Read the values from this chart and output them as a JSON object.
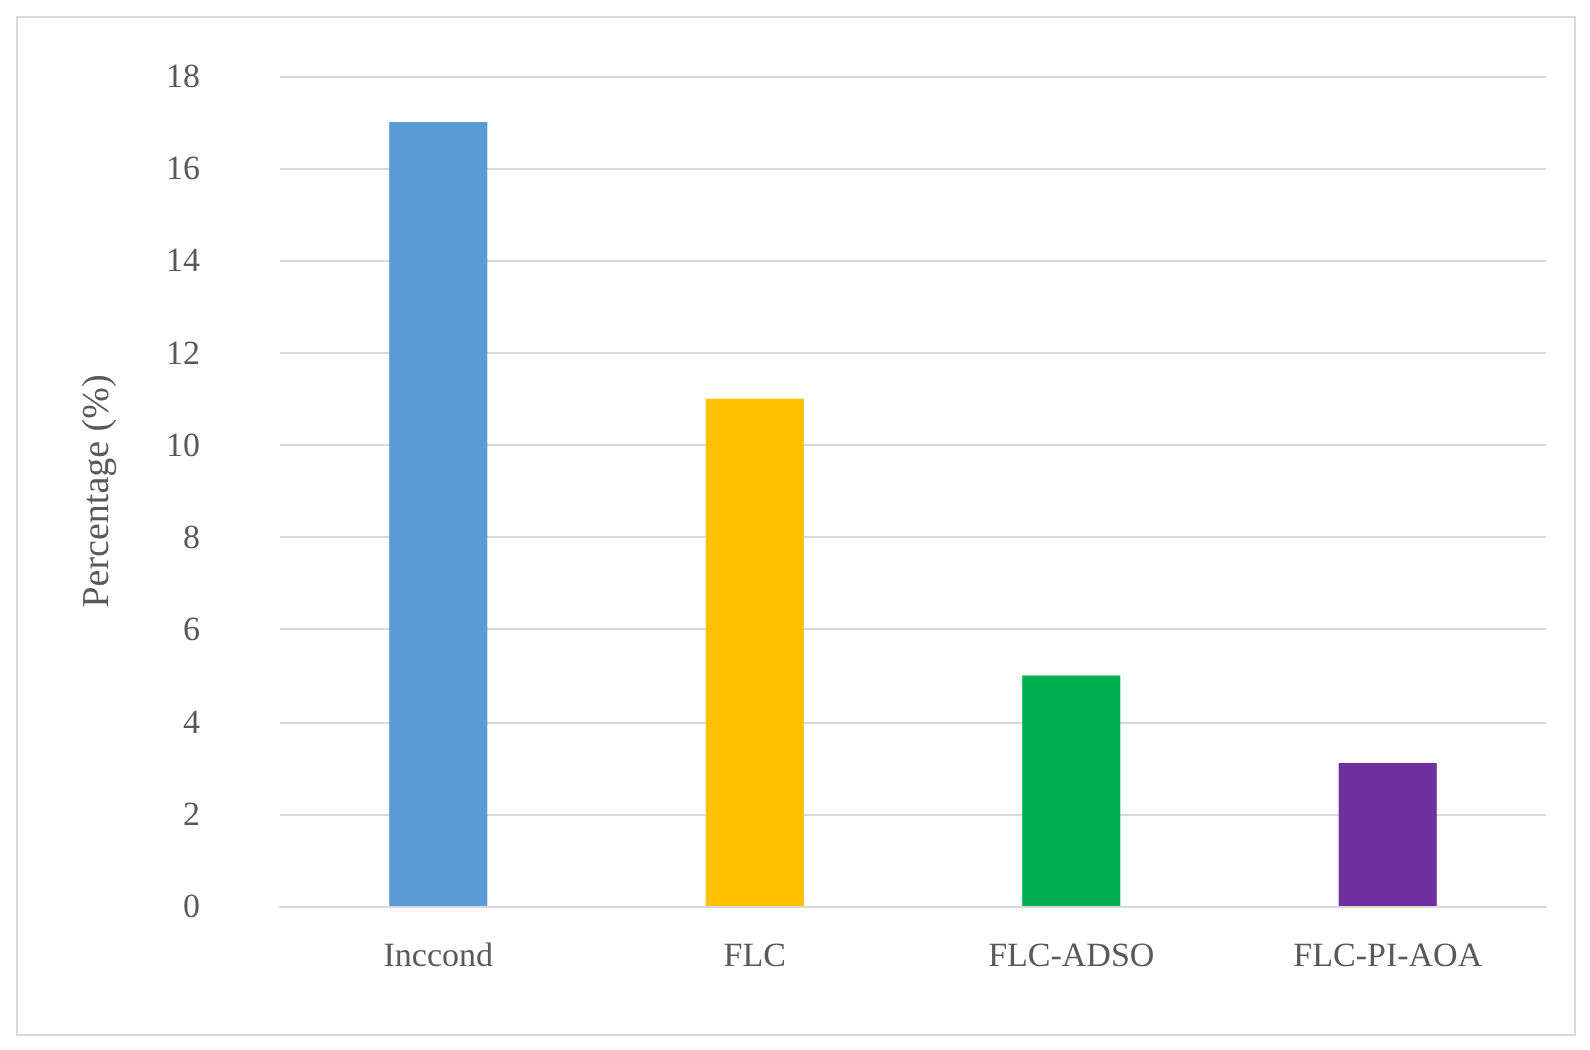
{
  "chart_data": {
    "type": "bar",
    "ylabel": "Percentage (%)",
    "categories": [
      "Inccond",
      "FLC",
      "FLC-ADSO",
      "FLC-PI-AOA"
    ],
    "values": [
      17,
      11,
      5,
      3.1
    ],
    "colors": [
      "#5b9bd5",
      "#ffc000",
      "#00b050",
      "#7030a0"
    ],
    "ylim": [
      0,
      18
    ],
    "yticks": [
      0,
      2,
      4,
      6,
      8,
      10,
      12,
      14,
      16,
      18
    ],
    "grid": "y"
  }
}
